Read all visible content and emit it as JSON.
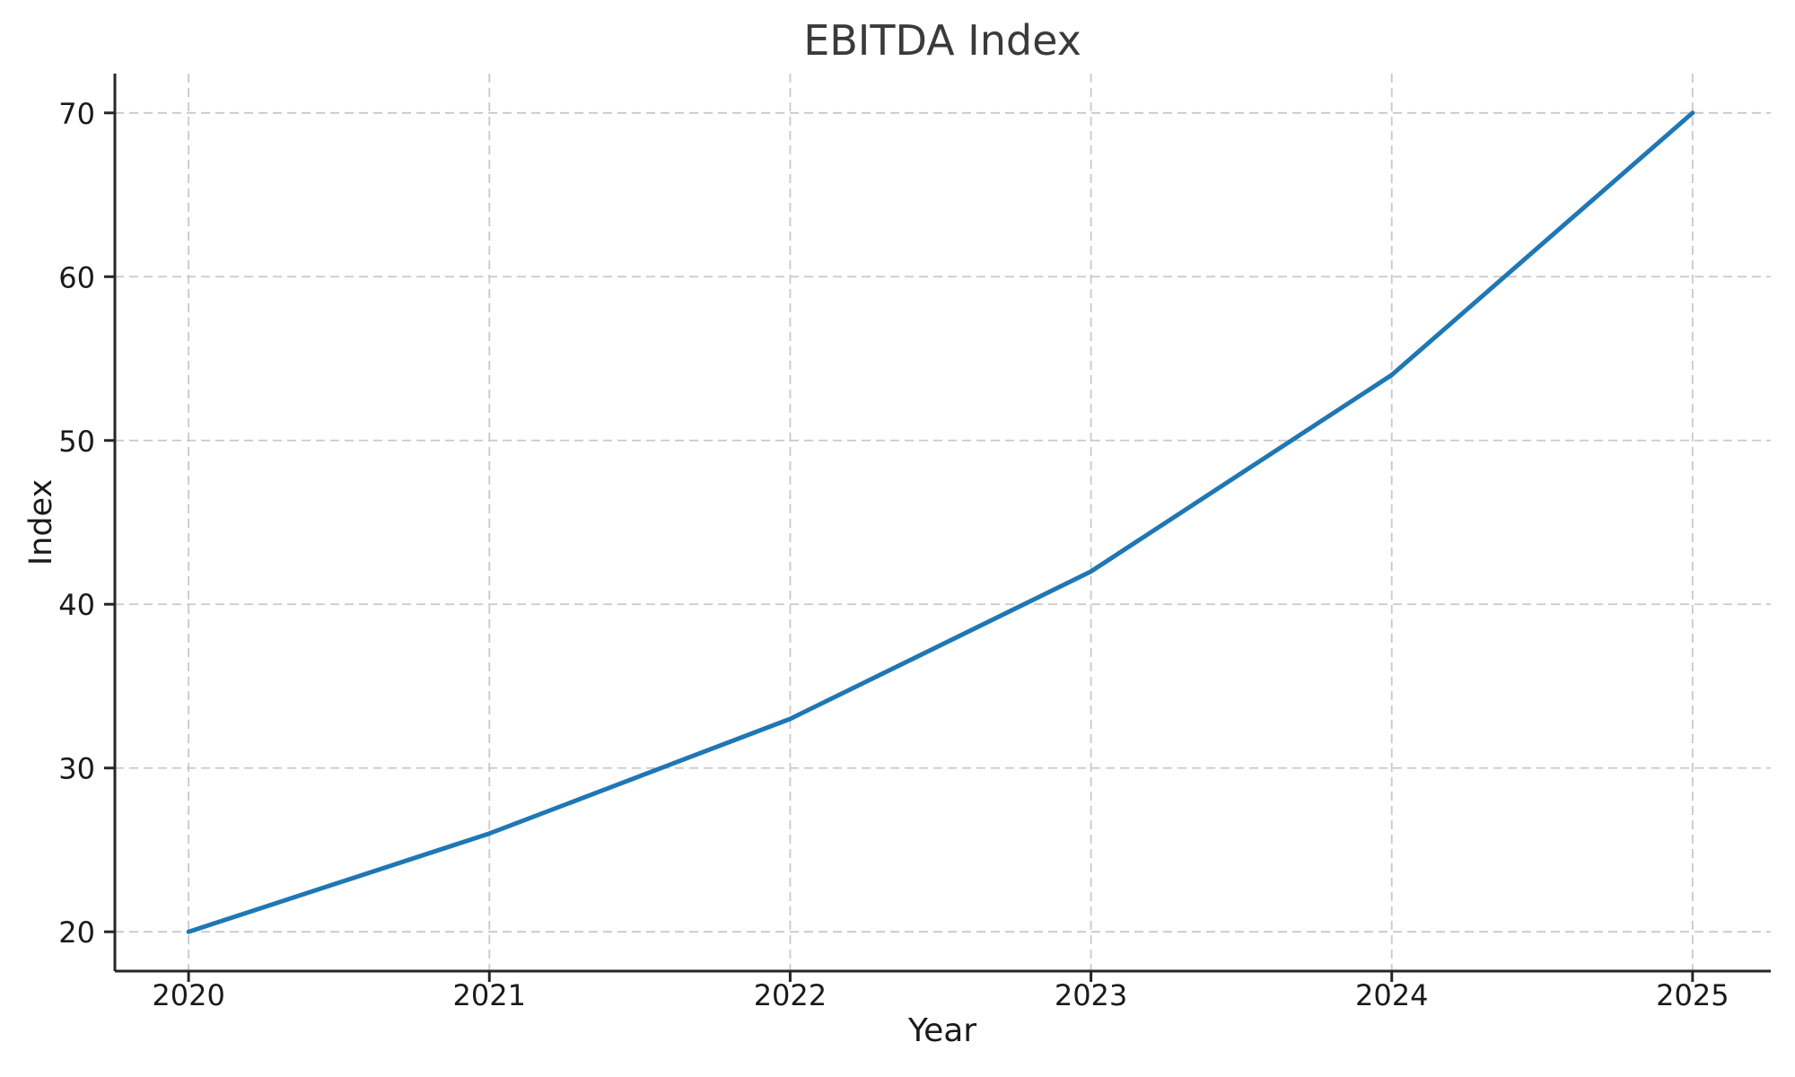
{
  "chart_data": {
    "type": "line",
    "title": "EBITDA Index",
    "xlabel": "Year",
    "ylabel": "Index",
    "x": [
      2020,
      2021,
      2022,
      2023,
      2024,
      2025
    ],
    "series": [
      {
        "name": "EBITDA Index",
        "values": [
          20,
          26,
          33,
          42,
          54,
          70
        ],
        "color": "#1f77b4"
      }
    ],
    "x_ticks": [
      2020,
      2021,
      2022,
      2023,
      2024,
      2025
    ],
    "x_tick_labels": [
      "2020",
      "2021",
      "2022",
      "2023",
      "2024",
      "2025"
    ],
    "y_ticks": [
      20,
      30,
      40,
      50,
      60,
      70
    ],
    "y_tick_labels": [
      "20",
      "30",
      "40",
      "50",
      "60",
      "70"
    ],
    "xlim": [
      2019.755,
      2025.26
    ],
    "ylim": [
      17.6,
      72.4
    ],
    "grid": "dashed-both",
    "legend": "none",
    "markers": "none",
    "colors": {
      "line": "#1f77b4",
      "grid": "#c9c9c9",
      "axis": "#262626",
      "tick_text": "#1a1a1a",
      "title_text": "#3a3a3a",
      "background": "#ffffff"
    }
  }
}
